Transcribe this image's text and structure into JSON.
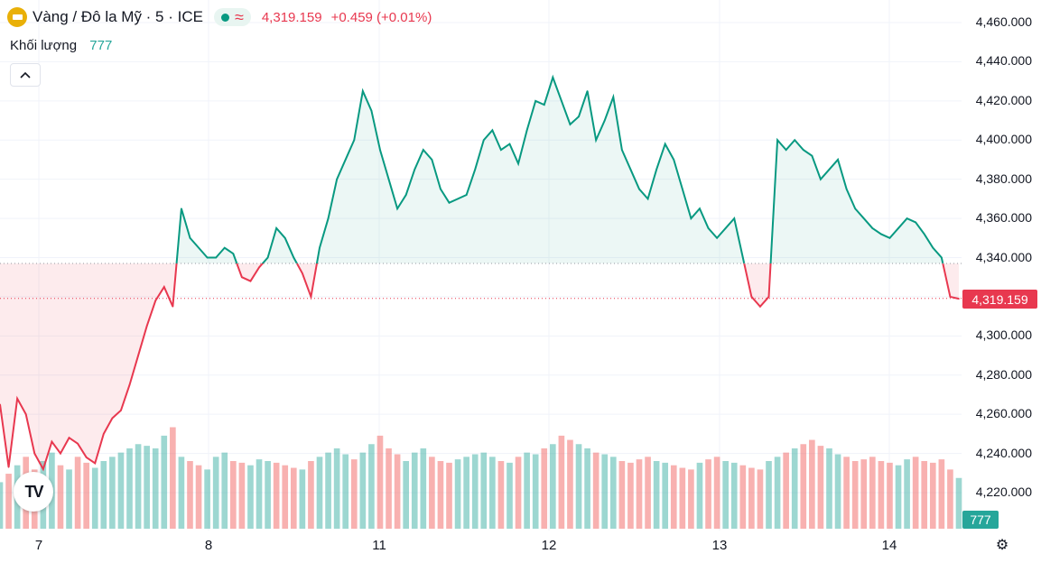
{
  "header": {
    "title": "Vàng / Đô la Mỹ · 5 · ICE",
    "approx_symbol": "≈",
    "price": "4,319.159",
    "change": "+0.459 (+0.01%)"
  },
  "volume": {
    "label": "Khối lượng",
    "value": "777"
  },
  "colors": {
    "up": "#089981",
    "down": "#e8384f",
    "vol_up": "#26a69a",
    "vol_down": "#ef5350"
  },
  "icons": {
    "gold": "gold-bar-icon",
    "collapse": "chevron-up-icon",
    "settings": "gear-icon",
    "logo": "tradingview-logo"
  },
  "logo_text": "TV",
  "collapse_glyph": "^",
  "settings_glyph": "⚙",
  "price_tag": "4,319.159",
  "volume_tag": "777",
  "chart_data": {
    "type": "area",
    "y_ticks": [
      "4,460.000",
      "4,440.000",
      "4,420.000",
      "4,400.000",
      "4,380.000",
      "4,360.000",
      "4,340.000",
      "4,320.000",
      "4,300.000",
      "4,280.000",
      "4,260.000",
      "4,240.000",
      "4,220.000"
    ],
    "x_ticks": [
      "7",
      "8",
      "11",
      "12",
      "13",
      "14"
    ],
    "ylim": [
      4210,
      4462
    ],
    "baseline": 4337,
    "current_price": 4319.159,
    "grid": true,
    "series": [
      {
        "x": [
          0,
          1,
          2,
          3,
          4,
          5,
          6,
          7,
          8,
          9,
          10,
          11,
          12,
          13,
          14,
          15,
          16,
          17,
          18,
          19,
          20,
          21,
          22,
          23,
          24,
          25,
          26,
          27,
          28,
          29,
          30,
          31,
          32,
          33,
          34,
          35,
          36,
          37,
          38,
          39,
          40,
          41,
          42,
          43,
          44,
          45,
          46,
          47,
          48,
          49,
          50,
          51,
          52,
          53,
          54,
          55,
          56,
          57,
          58,
          59,
          60,
          61,
          62,
          63,
          64,
          65,
          66,
          67,
          68,
          69,
          70,
          71,
          72,
          73,
          74,
          75,
          76,
          77,
          78,
          79,
          80,
          81,
          82,
          83,
          84,
          85,
          86,
          87,
          88,
          89,
          90,
          91,
          92,
          93,
          94,
          95,
          96,
          97,
          98,
          99,
          100,
          101,
          102,
          103,
          104,
          105,
          106,
          107,
          108,
          109,
          110,
          111
        ],
        "values": [
          4265,
          4233,
          4268,
          4260,
          4240,
          4232,
          4246,
          4240,
          4248,
          4245,
          4238,
          4235,
          4250,
          4258,
          4262,
          4275,
          4290,
          4305,
          4318,
          4325,
          4315,
          4365,
          4350,
          4345,
          4340,
          4340,
          4345,
          4342,
          4330,
          4328,
          4335,
          4340,
          4355,
          4350,
          4340,
          4332,
          4320,
          4345,
          4360,
          4380,
          4390,
          4400,
          4425,
          4415,
          4395,
          4380,
          4365,
          4372,
          4385,
          4395,
          4390,
          4375,
          4368,
          4370,
          4372,
          4385,
          4400,
          4405,
          4395,
          4398,
          4388,
          4405,
          4420,
          4418,
          4432,
          4420,
          4408,
          4412,
          4425,
          4400,
          4410,
          4422,
          4395,
          4385,
          4375,
          4370,
          4385,
          4398,
          4390,
          4375,
          4360,
          4365,
          4355,
          4350,
          4355,
          4360,
          4340,
          4320,
          4315,
          4320,
          4400,
          4395,
          4400,
          4395,
          4392,
          4380,
          4385,
          4390,
          4375,
          4365,
          4360,
          4355,
          4352,
          4350,
          4355,
          4360,
          4358,
          4352,
          4345,
          4340,
          4320,
          4319
        ],
        "volume": [
          55,
          65,
          75,
          85,
          70,
          80,
          90,
          75,
          70,
          85,
          78,
          72,
          80,
          85,
          90,
          95,
          100,
          98,
          95,
          110,
          120,
          85,
          80,
          75,
          70,
          85,
          90,
          80,
          78,
          75,
          82,
          80,
          78,
          75,
          72,
          70,
          80,
          85,
          90,
          95,
          88,
          82,
          90,
          100,
          110,
          95,
          88,
          80,
          90,
          95,
          85,
          80,
          78,
          82,
          85,
          88,
          90,
          85,
          80,
          78,
          85,
          90,
          88,
          95,
          100,
          110,
          105,
          100,
          95,
          90,
          88,
          85,
          80,
          78,
          82,
          85,
          80,
          78,
          75,
          72,
          70,
          78,
          82,
          85,
          80,
          78,
          75,
          72,
          70,
          80,
          85,
          90,
          95,
          100,
          105,
          98,
          95,
          88,
          85,
          80,
          82,
          85,
          80,
          78,
          75,
          82,
          85,
          80,
          78,
          82,
          70,
          60
        ],
        "volume_up": [
          true,
          false,
          true,
          false,
          false,
          true,
          true,
          false,
          true,
          false,
          false,
          true,
          true,
          true,
          true,
          true,
          true,
          true,
          true,
          true,
          false,
          true,
          false,
          false,
          true,
          true,
          true,
          false,
          false,
          true,
          true,
          true,
          false,
          false,
          false,
          true,
          false,
          true,
          true,
          true,
          true,
          false,
          true,
          true,
          false,
          false,
          false,
          true,
          true,
          true,
          false,
          false,
          false,
          true,
          true,
          true,
          true,
          true,
          false,
          true,
          false,
          true,
          true,
          false,
          true,
          false,
          false,
          true,
          true,
          false,
          true,
          true,
          false,
          false,
          false,
          false,
          true,
          true,
          false,
          false,
          false,
          true,
          false,
          false,
          true,
          true,
          false,
          false,
          false,
          true,
          true,
          false,
          true,
          false,
          false,
          false,
          true,
          true,
          false,
          false,
          false,
          false,
          false,
          false,
          true,
          true,
          false,
          false,
          false,
          false,
          false,
          true
        ]
      }
    ]
  }
}
